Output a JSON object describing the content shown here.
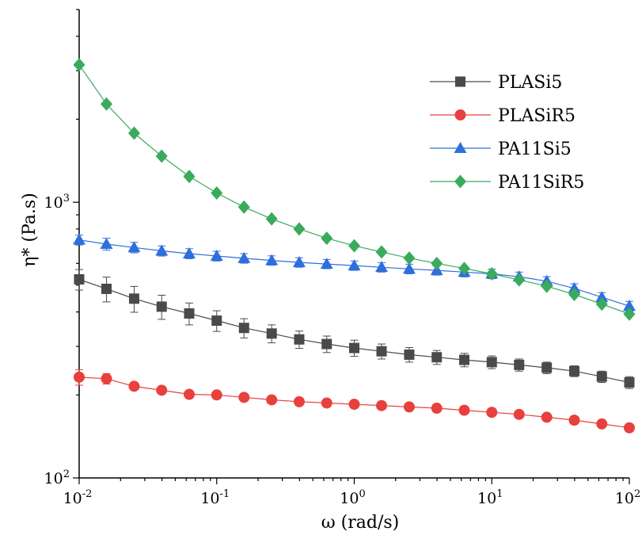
{
  "chart_data": {
    "type": "line",
    "title": "",
    "xlabel": "ω (rad/s)",
    "ylabel": "η* (Pa.s)",
    "xscale": "log",
    "yscale": "log",
    "xlim": [
      0.01,
      100
    ],
    "ylim": [
      100,
      5000
    ],
    "x_ticks": [
      {
        "base": "10",
        "exp": "-2"
      },
      {
        "base": "10",
        "exp": "-1"
      },
      {
        "base": "10",
        "exp": "0"
      },
      {
        "base": "10",
        "exp": "1"
      },
      {
        "base": "10",
        "exp": "2"
      }
    ],
    "y_ticks": [
      {
        "base": "10",
        "exp": "2"
      },
      {
        "base": "10",
        "exp": "3"
      }
    ],
    "grid": false,
    "legend_position": "top-right",
    "x": [
      0.01,
      0.0158,
      0.0251,
      0.0398,
      0.0631,
      0.1,
      0.158,
      0.251,
      0.398,
      0.631,
      1,
      1.58,
      2.51,
      3.98,
      6.31,
      10,
      15.8,
      25.1,
      39.8,
      63.1,
      100
    ],
    "series": [
      {
        "name": "PLASi5",
        "color": "#4a4a4a",
        "marker": "square",
        "values": [
          525,
          485,
          447,
          418,
          395,
          372,
          350,
          334,
          318,
          306,
          296,
          288,
          280,
          274,
          268,
          263,
          257,
          251,
          244,
          233,
          222
        ],
        "errors": [
          45,
          50,
          48,
          42,
          36,
          32,
          28,
          25,
          23,
          21,
          20,
          18,
          17,
          16,
          15,
          14,
          13,
          12,
          11,
          11,
          11
        ]
      },
      {
        "name": "PLASiR5",
        "color": "#e8403d",
        "marker": "circle",
        "values": [
          232,
          229,
          215,
          208,
          201,
          200,
          196,
          192,
          189,
          187,
          185,
          183,
          181,
          179,
          176,
          173,
          170,
          166,
          162,
          157,
          152
        ],
        "errors": [
          15,
          10,
          4,
          4,
          3,
          3,
          3,
          3,
          3,
          3,
          3,
          3,
          3,
          3,
          3,
          3,
          3,
          3,
          3,
          3,
          3
        ]
      },
      {
        "name": "PA11Si5",
        "color": "#2f6fdc",
        "marker": "triangle",
        "values": [
          730,
          705,
          685,
          666,
          651,
          638,
          626,
          615,
          605,
          597,
          589,
          581,
          573,
          566,
          558,
          550,
          537,
          517,
          487,
          452,
          420
        ],
        "errors": [
          30,
          35,
          30,
          28,
          27,
          26,
          25,
          24,
          24,
          23,
          23,
          23,
          23,
          22,
          22,
          22,
          21,
          20,
          19,
          18,
          17
        ]
      },
      {
        "name": "PA11SiR5",
        "color": "#3aab5d",
        "marker": "diamond",
        "values": [
          3150,
          2270,
          1780,
          1470,
          1240,
          1080,
          960,
          870,
          800,
          740,
          695,
          660,
          627,
          600,
          575,
          550,
          523,
          496,
          463,
          427,
          393
        ],
        "errors": [
          0,
          0,
          0,
          0,
          0,
          0,
          0,
          0,
          0,
          0,
          0,
          0,
          0,
          0,
          0,
          0,
          0,
          0,
          0,
          0,
          0
        ]
      }
    ]
  }
}
